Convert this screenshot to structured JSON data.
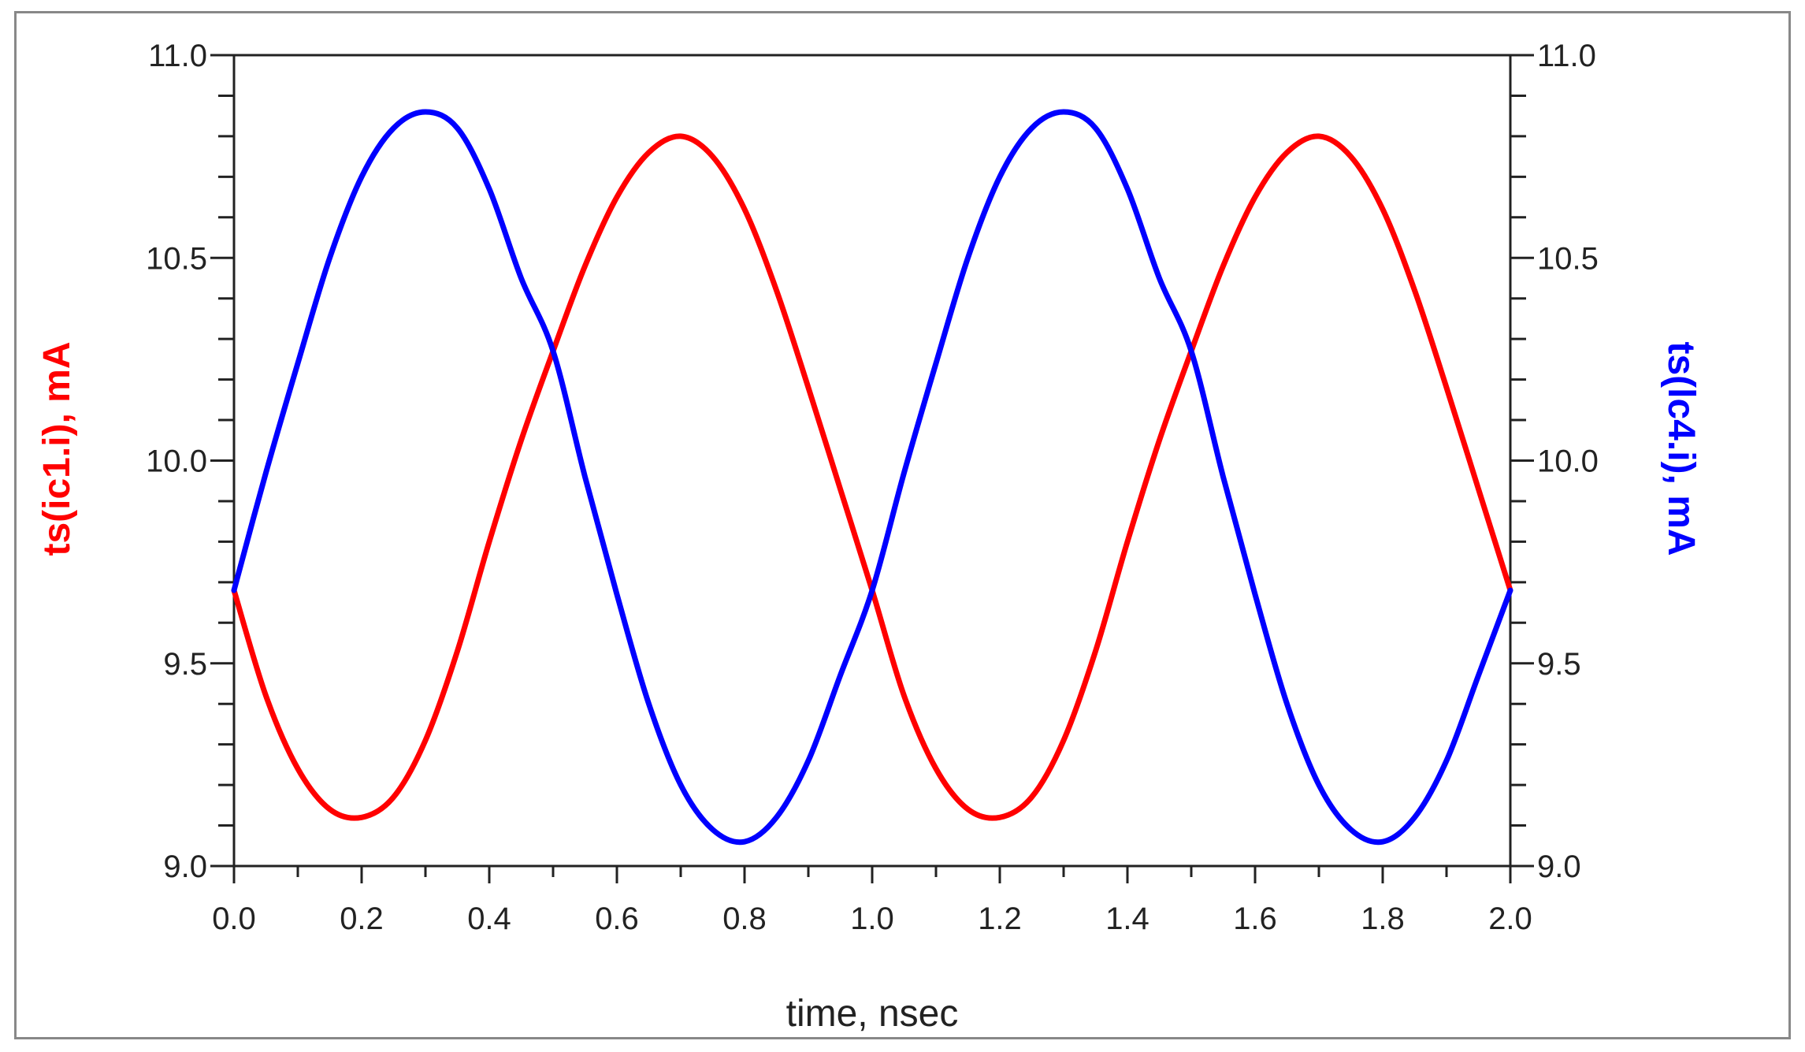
{
  "chart_data": {
    "type": "line",
    "xlabel": "time, nsec",
    "ylabel_left": "ts(ic1.i), mA",
    "ylabel_right": "ts(lc4.i), mA",
    "xlim": [
      0.0,
      2.0
    ],
    "ylim": [
      9.0,
      11.0
    ],
    "x_ticks": [
      "0.0",
      "0.2",
      "0.4",
      "0.6",
      "0.8",
      "1.0",
      "1.2",
      "1.4",
      "1.6",
      "1.8",
      "2.0"
    ],
    "y_ticks": [
      "9.0",
      "9.5",
      "10.0",
      "10.5",
      "11.0"
    ],
    "grid": false,
    "series": [
      {
        "color": "#ff0000",
        "axis": "left",
        "x": [
          0.0,
          0.05,
          0.1,
          0.15,
          0.2,
          0.25,
          0.3,
          0.35,
          0.4,
          0.45,
          0.5,
          0.55,
          0.6,
          0.65,
          0.7,
          0.75,
          0.8,
          0.85,
          0.9,
          0.95,
          1.0,
          1.05,
          1.1,
          1.15,
          1.2,
          1.25,
          1.3,
          1.35,
          1.4,
          1.45,
          1.5,
          1.55,
          1.6,
          1.65,
          1.7,
          1.75,
          1.8,
          1.85,
          1.9,
          1.95,
          2.0
        ],
        "values": [
          9.68,
          9.42,
          9.24,
          9.14,
          9.12,
          9.17,
          9.31,
          9.53,
          9.8,
          10.05,
          10.27,
          10.48,
          10.65,
          10.76,
          10.8,
          10.75,
          10.62,
          10.42,
          10.18,
          9.93,
          9.68,
          9.42,
          9.24,
          9.14,
          9.12,
          9.17,
          9.31,
          9.53,
          9.8,
          10.05,
          10.27,
          10.48,
          10.65,
          10.76,
          10.8,
          10.75,
          10.62,
          10.42,
          10.18,
          9.93,
          9.68
        ]
      },
      {
        "color": "#0000ff",
        "axis": "right",
        "x": [
          0.0,
          0.05,
          0.1,
          0.15,
          0.2,
          0.25,
          0.3,
          0.35,
          0.4,
          0.45,
          0.5,
          0.55,
          0.6,
          0.65,
          0.7,
          0.75,
          0.8,
          0.85,
          0.9,
          0.95,
          1.0,
          1.05,
          1.1,
          1.15,
          1.2,
          1.25,
          1.3,
          1.35,
          1.4,
          1.45,
          1.5,
          1.55,
          1.6,
          1.65,
          1.7,
          1.75,
          1.8,
          1.85,
          1.9,
          1.95,
          2.0
        ],
        "values": [
          9.68,
          9.97,
          10.24,
          10.5,
          10.7,
          10.82,
          10.86,
          10.82,
          10.67,
          10.45,
          10.27,
          9.96,
          9.67,
          9.4,
          9.2,
          9.09,
          9.06,
          9.12,
          9.26,
          9.47,
          9.68,
          9.97,
          10.24,
          10.5,
          10.7,
          10.82,
          10.86,
          10.82,
          10.67,
          10.45,
          10.27,
          9.96,
          9.67,
          9.4,
          9.2,
          9.09,
          9.06,
          9.12,
          9.26,
          9.47,
          9.68
        ]
      }
    ]
  }
}
